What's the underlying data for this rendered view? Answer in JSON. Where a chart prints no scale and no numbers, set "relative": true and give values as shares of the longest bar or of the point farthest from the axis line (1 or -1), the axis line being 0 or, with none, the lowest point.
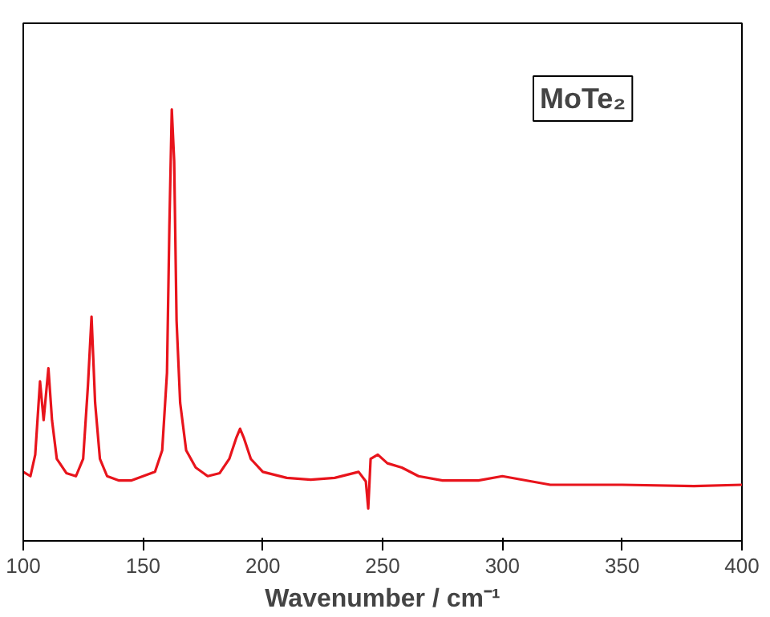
{
  "chart_data": {
    "type": "line",
    "relative": true,
    "xlabel": "Wavenumber / cm⁻¹",
    "annotations": [
      "MoTe₂"
    ],
    "xlim": [
      100,
      400
    ],
    "xticks": [
      100,
      150,
      200,
      250,
      300,
      350,
      400
    ],
    "grid": false,
    "line_style": "solid",
    "marker": "none",
    "x": [
      100,
      103,
      105,
      107,
      108.5,
      110.5,
      112,
      114,
      118,
      122,
      125,
      127,
      128.5,
      130,
      132,
      135,
      140,
      145,
      150,
      155,
      158,
      160,
      161,
      162,
      163,
      164,
      165.5,
      168,
      172,
      177,
      182,
      186,
      189,
      190.5,
      192,
      195,
      200,
      210,
      220,
      230,
      240,
      243,
      244,
      245,
      248,
      252,
      258,
      265,
      275,
      290,
      300,
      320,
      350,
      380,
      400
    ],
    "series": [
      {
        "color": "#e8141c",
        "values": [
          0.16,
          0.15,
          0.2,
          0.37,
          0.28,
          0.4,
          0.28,
          0.19,
          0.157,
          0.15,
          0.19,
          0.36,
          0.52,
          0.32,
          0.19,
          0.15,
          0.14,
          0.14,
          0.15,
          0.16,
          0.21,
          0.39,
          0.73,
          1.0,
          0.88,
          0.51,
          0.32,
          0.21,
          0.17,
          0.15,
          0.157,
          0.19,
          0.24,
          0.26,
          0.24,
          0.19,
          0.16,
          0.146,
          0.142,
          0.146,
          0.16,
          0.138,
          0.075,
          0.19,
          0.2,
          0.18,
          0.17,
          0.15,
          0.14,
          0.14,
          0.15,
          0.13,
          0.13,
          0.127,
          0.13
        ]
      }
    ]
  }
}
